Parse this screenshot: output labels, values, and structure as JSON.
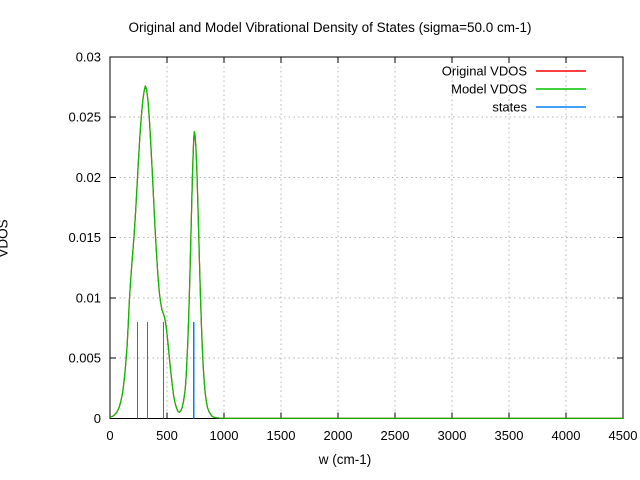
{
  "title": "Original and Model Vibrational Density of States (sigma=50.0 cm-1)",
  "colors": {
    "original": "#ff0000",
    "model": "#00c000",
    "states": "#0080ff",
    "grid": "#b4b4b4",
    "border": "#000000",
    "text": "#000000",
    "background": "#ffffff"
  },
  "chart_data": {
    "type": "line",
    "title": "Original and Model Vibrational Density of States (sigma=50.0 cm-1)",
    "xlabel": "w (cm-1)",
    "ylabel": "VDOS",
    "xlim": [
      0,
      4500
    ],
    "ylim": [
      0,
      0.03
    ],
    "xticks": [
      0,
      500,
      1000,
      1500,
      2000,
      2500,
      3000,
      3500,
      4000,
      4500
    ],
    "yticks": [
      0,
      0.005,
      0.01,
      0.015,
      0.02,
      0.025,
      0.03
    ],
    "ytick_labels": [
      "0",
      "0.005",
      "0.01",
      "0.015",
      "0.02",
      "0.025",
      "0.03"
    ],
    "grid": true,
    "legend_position": "top-right",
    "legend": [
      {
        "label": "Original VDOS",
        "color": "#ff0000"
      },
      {
        "label": "Model VDOS",
        "color": "#00c000"
      },
      {
        "label": "states",
        "color": "#0080ff"
      }
    ],
    "series": [
      {
        "name": "Original VDOS",
        "type": "line",
        "color": "#ff0000",
        "points_ref": "Model VDOS",
        "note": "coincides exactly with Model VDOS; hidden beneath green curve"
      },
      {
        "name": "Model VDOS",
        "type": "line",
        "color": "#00c000",
        "points": [
          [
            0,
            0.0001
          ],
          [
            30,
            0.0002
          ],
          [
            60,
            0.0005
          ],
          [
            80,
            0.0009
          ],
          [
            95,
            0.0014
          ],
          [
            110,
            0.0021
          ],
          [
            125,
            0.0032
          ],
          [
            138,
            0.0045
          ],
          [
            150,
            0.006
          ],
          [
            160,
            0.0078
          ],
          [
            170,
            0.0098
          ],
          [
            180,
            0.0113
          ],
          [
            190,
            0.0126
          ],
          [
            200,
            0.0138
          ],
          [
            212,
            0.0153
          ],
          [
            225,
            0.0172
          ],
          [
            238,
            0.0194
          ],
          [
            250,
            0.0215
          ],
          [
            262,
            0.0234
          ],
          [
            275,
            0.0251
          ],
          [
            288,
            0.0264
          ],
          [
            300,
            0.0272
          ],
          [
            310,
            0.0276
          ],
          [
            321,
            0.0273
          ],
          [
            333,
            0.0264
          ],
          [
            345,
            0.0249
          ],
          [
            357,
            0.0229
          ],
          [
            370,
            0.0206
          ],
          [
            383,
            0.0181
          ],
          [
            395,
            0.0158
          ],
          [
            408,
            0.0137
          ],
          [
            420,
            0.0119
          ],
          [
            432,
            0.0105
          ],
          [
            444,
            0.0096
          ],
          [
            456,
            0.009
          ],
          [
            468,
            0.0087
          ],
          [
            478,
            0.0084
          ],
          [
            488,
            0.0079
          ],
          [
            498,
            0.0072
          ],
          [
            510,
            0.0061
          ],
          [
            522,
            0.0049
          ],
          [
            534,
            0.0038
          ],
          [
            546,
            0.0028
          ],
          [
            558,
            0.0019
          ],
          [
            570,
            0.0013
          ],
          [
            582,
            0.0009
          ],
          [
            594,
            0.0006
          ],
          [
            607,
            0.0005
          ],
          [
            620,
            0.0006
          ],
          [
            633,
            0.0009
          ],
          [
            645,
            0.0014
          ],
          [
            657,
            0.0022
          ],
          [
            660,
            0.0024
          ],
          [
            670,
            0.0038
          ],
          [
            680,
            0.0058
          ],
          [
            690,
            0.0083
          ],
          [
            699,
            0.0112
          ],
          [
            707,
            0.0141
          ],
          [
            715,
            0.0171
          ],
          [
            722,
            0.0197
          ],
          [
            729,
            0.0219
          ],
          [
            735,
            0.0233
          ],
          [
            740,
            0.0238
          ],
          [
            746,
            0.0235
          ],
          [
            753,
            0.0226
          ],
          [
            761,
            0.0208
          ],
          [
            769,
            0.0184
          ],
          [
            777,
            0.0157
          ],
          [
            785,
            0.0129
          ],
          [
            793,
            0.0103
          ],
          [
            801,
            0.008
          ],
          [
            809,
            0.006
          ],
          [
            817,
            0.0044
          ],
          [
            826,
            0.0031
          ],
          [
            835,
            0.0021
          ],
          [
            845,
            0.0014
          ],
          [
            855,
            0.0009
          ],
          [
            866,
            0.0006
          ],
          [
            878,
            0.0004
          ],
          [
            892,
            0.0002
          ],
          [
            908,
            0.0001
          ],
          [
            928,
            5e-05
          ],
          [
            960,
            2e-05
          ],
          [
            1000,
            0
          ],
          [
            1500,
            0
          ],
          [
            2000,
            0
          ],
          [
            2500,
            0
          ],
          [
            3000,
            0
          ],
          [
            3500,
            0
          ],
          [
            4000,
            0
          ],
          [
            4500,
            0
          ]
        ]
      },
      {
        "name": "states",
        "type": "impulses",
        "color": "#0080ff",
        "x": [
          240,
          330,
          470,
          735
        ],
        "height": 0.008
      }
    ]
  }
}
